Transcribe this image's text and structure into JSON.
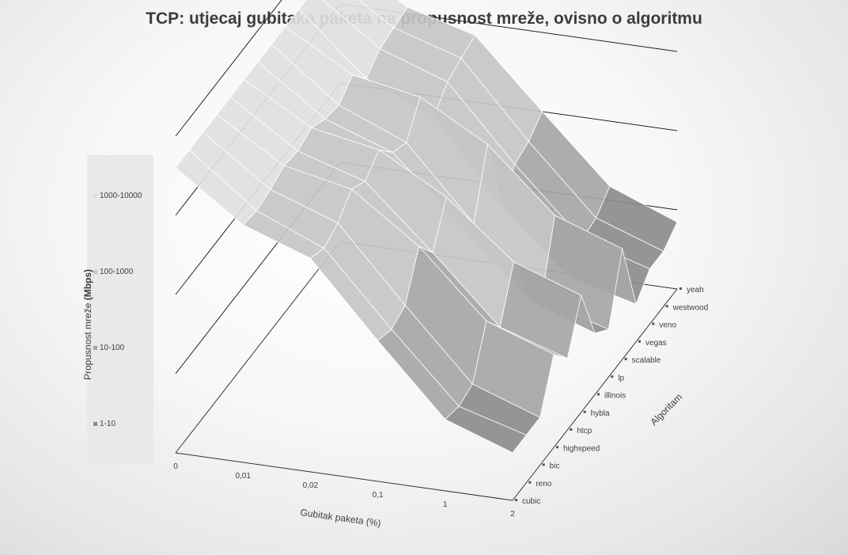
{
  "chart_data": {
    "type": "surface",
    "title": "TCP: utjecaj gubitaka paketa na propusnost mreže, ovisno o algoritmu",
    "xlabel": "Gubitak paketa (%)",
    "ylabel": "Propusnost mreže",
    "ylabel_unit": "(Mbps)",
    "zlabel": "Algoritam",
    "x": [
      "0",
      "0,01",
      "0,02",
      "0,1",
      "1",
      "2"
    ],
    "z": [
      "cubic",
      "reno",
      "bic",
      "highspeed",
      "htcp",
      "hybla",
      "illinois",
      "lp",
      "scalable",
      "vegas",
      "veno",
      "westwood",
      "yeah"
    ],
    "y_scale": "log",
    "y_bands": [
      "1-10",
      "10-100",
      "100-1000",
      "1000-10000"
    ],
    "band_colors": [
      "#8c8c8c",
      "#a6a6a6",
      "#c6c6c6",
      "#e0e0e0"
    ],
    "grid": true,
    "legend_position": "left",
    "values": [
      [
        4000,
        1000,
        500,
        60,
        8,
        4
      ],
      [
        4000,
        900,
        400,
        50,
        7,
        4
      ],
      [
        4000,
        1000,
        500,
        60,
        8,
        4
      ],
      [
        4000,
        1200,
        800,
        200,
        30,
        15
      ],
      [
        4000,
        1100,
        600,
        100,
        15,
        8
      ],
      [
        4000,
        1300,
        900,
        300,
        60,
        30
      ],
      [
        4000,
        1000,
        500,
        80,
        12,
        6
      ],
      [
        4000,
        900,
        400,
        50,
        7,
        4
      ],
      [
        4000,
        1300,
        900,
        300,
        50,
        25
      ],
      [
        4000,
        700,
        300,
        30,
        5,
        3
      ],
      [
        4000,
        1000,
        500,
        60,
        9,
        5
      ],
      [
        4000,
        1100,
        600,
        70,
        10,
        5
      ],
      [
        4000,
        1200,
        700,
        100,
        15,
        7
      ]
    ]
  }
}
